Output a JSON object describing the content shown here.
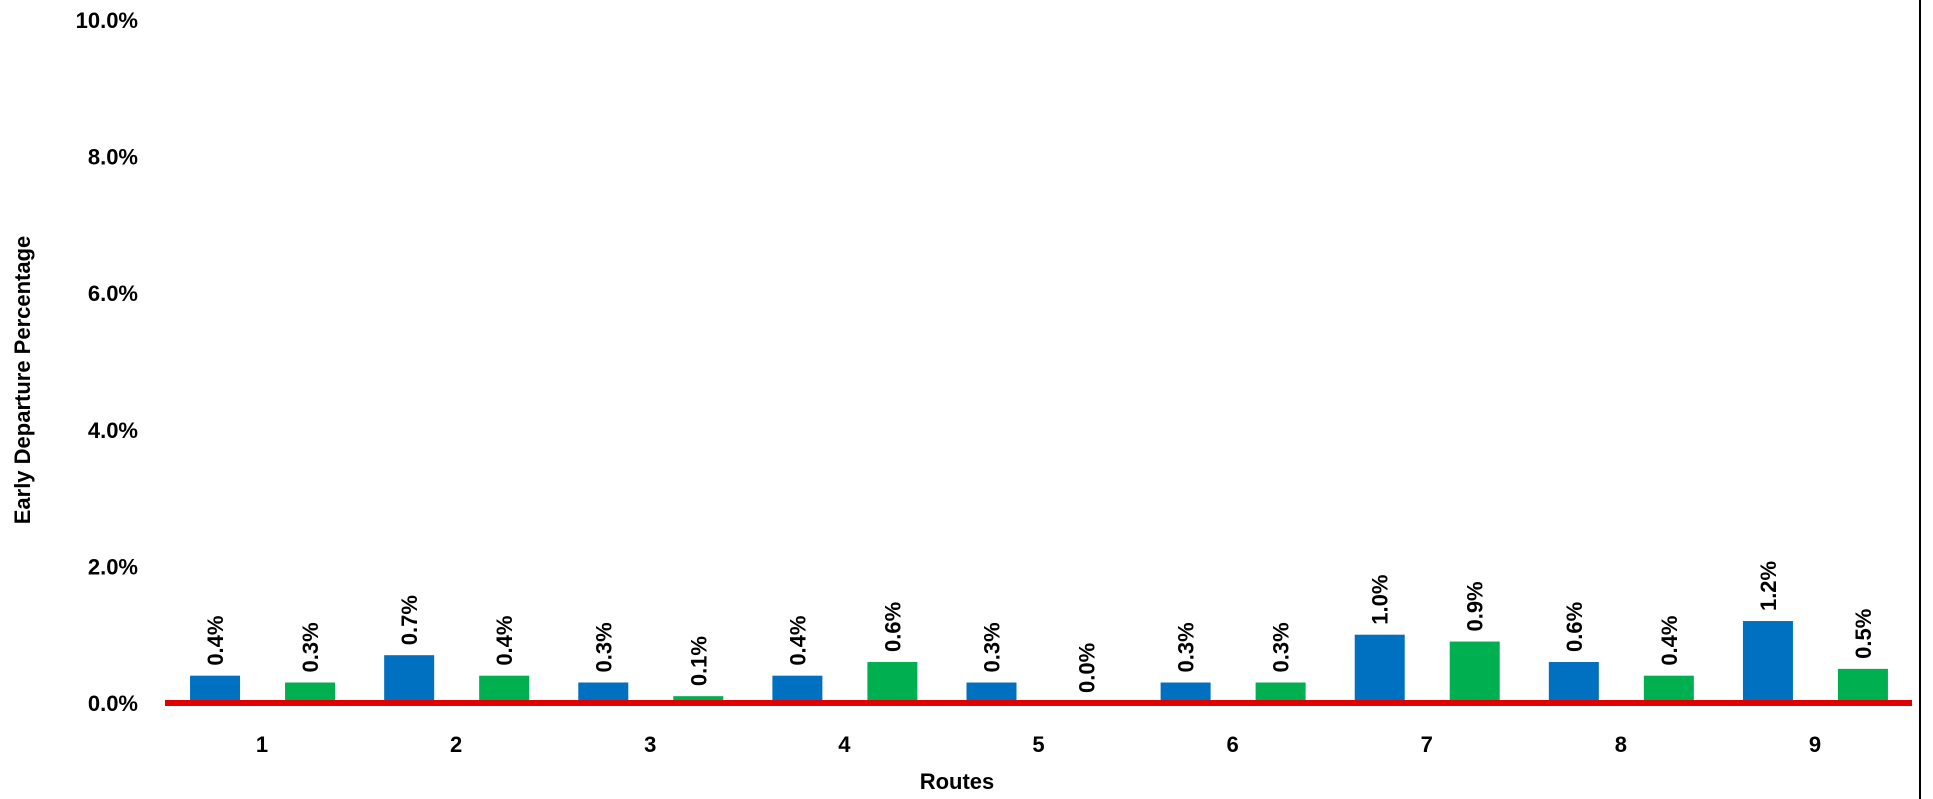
{
  "chart_data": {
    "type": "bar",
    "xlabel": "Routes",
    "ylabel": "Early Departure Percentage",
    "categories": [
      "1",
      "2",
      "3",
      "4",
      "5",
      "6",
      "7",
      "8",
      "9"
    ],
    "series": [
      {
        "color": "#0070C0",
        "values": [
          0.4,
          0.7,
          0.3,
          0.4,
          0.3,
          0.3,
          1.0,
          0.6,
          1.2
        ],
        "labels": [
          "0.4%",
          "0.7%",
          "0.3%",
          "0.4%",
          "0.3%",
          "0.3%",
          "1.0%",
          "0.6%",
          "1.2%"
        ]
      },
      {
        "color": "#00B050",
        "values": [
          0.3,
          0.4,
          0.1,
          0.6,
          0.0,
          0.3,
          0.9,
          0.4,
          0.5
        ],
        "labels": [
          "0.3%",
          "0.4%",
          "0.1%",
          "0.6%",
          "0.0%",
          "0.3%",
          "0.9%",
          "0.4%",
          "0.5%"
        ]
      }
    ],
    "ylim": [
      0,
      10
    ],
    "yticks": [
      0,
      2,
      4,
      6,
      8,
      10
    ],
    "ytick_labels": [
      "0.0%",
      "2.0%",
      "4.0%",
      "6.0%",
      "8.0%",
      "10.0%"
    ],
    "baseline_color": "#E00000",
    "grid": false,
    "legend": "none"
  }
}
